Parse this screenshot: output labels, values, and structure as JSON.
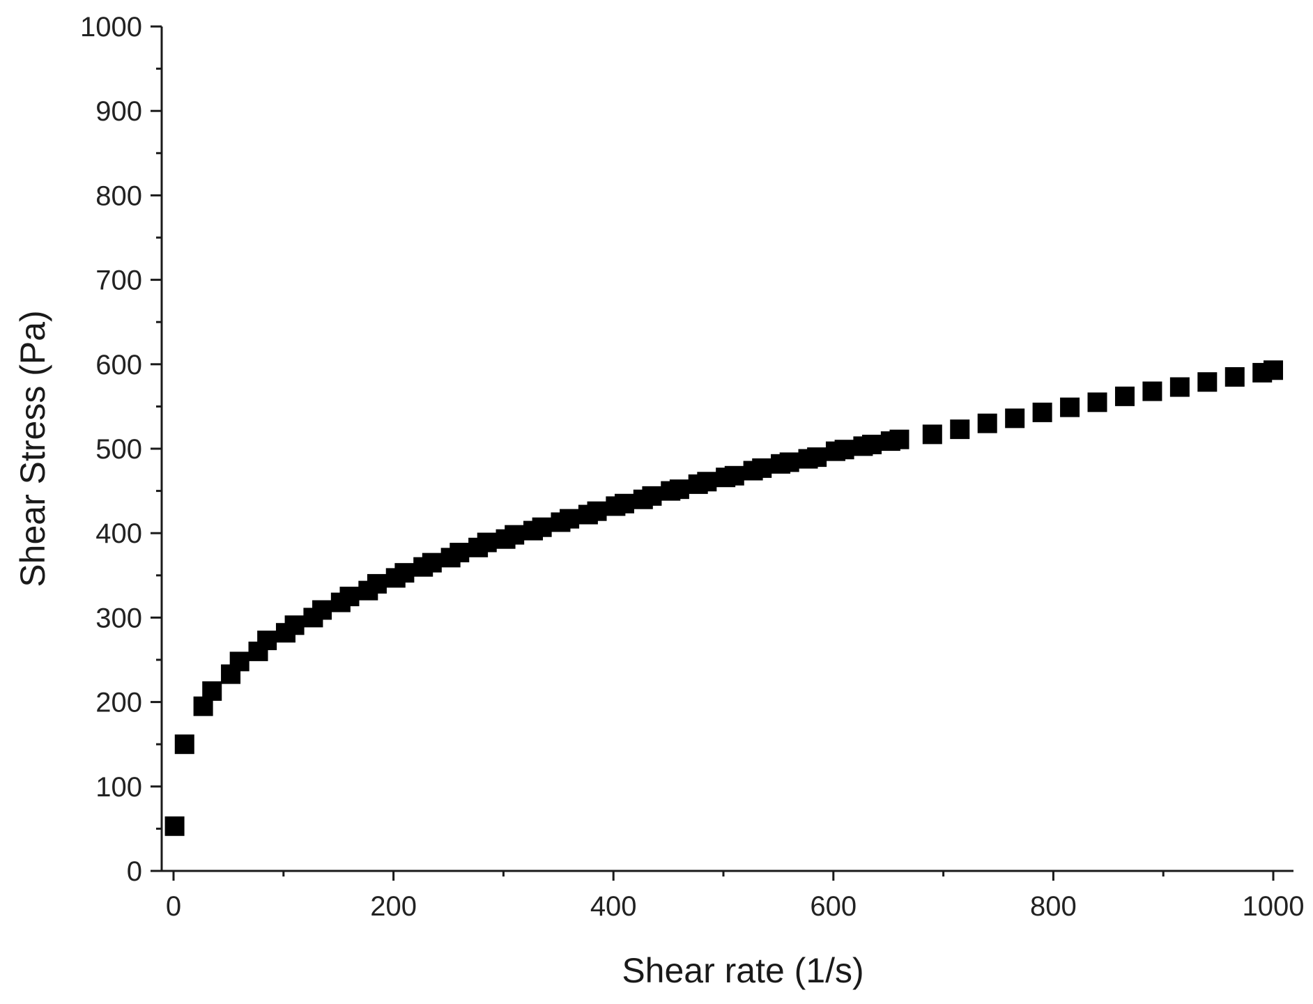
{
  "chart_data": {
    "type": "scatter",
    "title": "",
    "xlabel": "Shear rate (1/s)",
    "ylabel": "Shear Stress (Pa)",
    "xlim": [
      -10,
      1030
    ],
    "ylim": [
      0,
      1000
    ],
    "x_ticks": [
      0,
      200,
      400,
      600,
      800,
      1000
    ],
    "x_minor_ticks": [
      100,
      300,
      500,
      700,
      900
    ],
    "y_ticks": [
      0,
      100,
      200,
      300,
      400,
      500,
      600,
      700,
      800,
      900,
      1000
    ],
    "y_minor_ticks": [
      50,
      150,
      250,
      350,
      450,
      550,
      650,
      750,
      850,
      950
    ],
    "grid": false,
    "legend": "none",
    "marker": "square",
    "marker_color": "#000000",
    "series": [
      {
        "points": [
          [
            1,
            53
          ],
          [
            10,
            150
          ],
          [
            27,
            195
          ],
          [
            35,
            213
          ],
          [
            52,
            233
          ],
          [
            60,
            248
          ],
          [
            77,
            260
          ],
          [
            85,
            273
          ],
          [
            102,
            282
          ],
          [
            110,
            291
          ],
          [
            127,
            300
          ],
          [
            135,
            309
          ],
          [
            152,
            318
          ],
          [
            160,
            325
          ],
          [
            177,
            332
          ],
          [
            185,
            340
          ],
          [
            202,
            347
          ],
          [
            210,
            353
          ],
          [
            227,
            360
          ],
          [
            235,
            365
          ],
          [
            252,
            371
          ],
          [
            260,
            377
          ],
          [
            277,
            383
          ],
          [
            285,
            389
          ],
          [
            302,
            393
          ],
          [
            310,
            398
          ],
          [
            327,
            403
          ],
          [
            335,
            407
          ],
          [
            352,
            413
          ],
          [
            360,
            417
          ],
          [
            377,
            422
          ],
          [
            385,
            426
          ],
          [
            402,
            432
          ],
          [
            410,
            435
          ],
          [
            427,
            440
          ],
          [
            435,
            444
          ],
          [
            452,
            450
          ],
          [
            460,
            452
          ],
          [
            477,
            458
          ],
          [
            485,
            461
          ],
          [
            502,
            466
          ],
          [
            510,
            468
          ],
          [
            527,
            474
          ],
          [
            535,
            477
          ],
          [
            552,
            482
          ],
          [
            560,
            484
          ],
          [
            577,
            488
          ],
          [
            585,
            490
          ],
          [
            602,
            497
          ],
          [
            610,
            499
          ],
          [
            627,
            503
          ],
          [
            635,
            505
          ],
          [
            652,
            509
          ],
          [
            660,
            511
          ],
          [
            690,
            517
          ],
          [
            715,
            523
          ],
          [
            740,
            530
          ],
          [
            765,
            536
          ],
          [
            790,
            543
          ],
          [
            815,
            549
          ],
          [
            840,
            555
          ],
          [
            865,
            562
          ],
          [
            890,
            568
          ],
          [
            915,
            573
          ],
          [
            940,
            579
          ],
          [
            965,
            585
          ],
          [
            990,
            590
          ],
          [
            1000,
            593
          ]
        ]
      }
    ]
  }
}
